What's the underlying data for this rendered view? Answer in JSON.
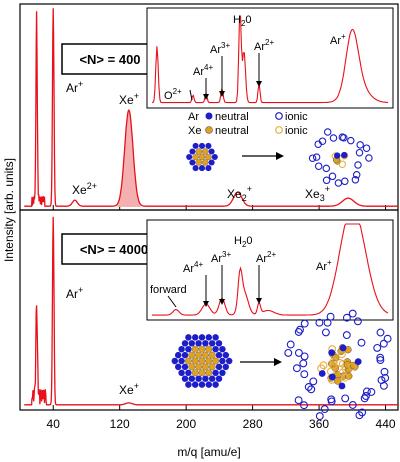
{
  "chart_data": [
    {
      "type": "line",
      "panel": "top",
      "box_label": "<N> = 400",
      "main_labels": [
        "Ar",
        "Xe",
        "Xe",
        "Xe",
        "Xe"
      ],
      "main_sups": [
        "+",
        "2+",
        "+",
        "",
        ""
      ],
      "main_subs": [
        "",
        "",
        "",
        "2",
        "3"
      ],
      "main_subsups": [
        "",
        "",
        "",
        "+",
        "+"
      ],
      "peaks": [
        {
          "x": 20,
          "y": 0.93
        },
        {
          "x": 40,
          "y": 0.99
        },
        {
          "x": 66,
          "y": 0.03
        },
        {
          "x": 131,
          "y": 0.48
        },
        {
          "x": 262,
          "y": 0.07
        },
        {
          "x": 395,
          "y": 0.04
        }
      ],
      "inset": {
        "labels": [
          "O",
          "Ar",
          "Ar",
          "H",
          "Ar",
          "Ar"
        ],
        "sups": [
          "2+",
          "4+",
          "3+",
          "",
          "2+",
          "+"
        ],
        "subs": [
          "",
          "",
          "",
          "2",
          "",
          ""
        ],
        "h2o_tail": "0",
        "legend": {
          "ar": "Ar",
          "xe": "Xe",
          "neutral": "neutral",
          "ionic": "ionic",
          "ar_neutral_color": "#1e1ec8",
          "xe_neutral_color": "#e0a020",
          "ar_ionic_color": "#1e1ec8",
          "xe_ionic_color": "#e8b040"
        }
      }
    },
    {
      "type": "line",
      "panel": "bottom",
      "box_label": "<N> = 4000",
      "main_labels": [
        "Ar",
        "Xe"
      ],
      "main_sups": [
        "+",
        "+"
      ],
      "peaks": [
        {
          "x": 20,
          "y": 0.47
        },
        {
          "x": 40,
          "y": 0.97
        },
        {
          "x": 131,
          "y": 0.01
        }
      ],
      "inset": {
        "labels": [
          "forward",
          "Ar",
          "Ar",
          "H",
          "Ar",
          "Ar"
        ],
        "sups": [
          "",
          "4+",
          "3+",
          "",
          "2+",
          "+"
        ],
        "h2o_tail": "0"
      }
    }
  ],
  "axes": {
    "xlabel": "m/q [amu/e]",
    "ylabel": "Intensity [arb. units]",
    "xticks": [
      "40",
      "120",
      "200",
      "280",
      "360",
      "440"
    ],
    "xtick_values": [
      40,
      120,
      200,
      280,
      360,
      440
    ],
    "xlim": [
      0,
      455
    ]
  },
  "colors": {
    "line": "#e8101a",
    "fill": "#f4b0b0"
  }
}
